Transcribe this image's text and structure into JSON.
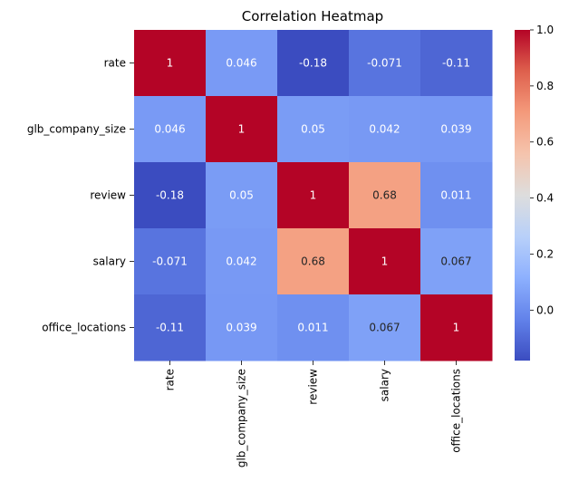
{
  "chart_data": {
    "type": "heatmap",
    "title": "Correlation Heatmap",
    "colormap": "coolwarm",
    "rows": [
      "rate",
      "glb_company_size",
      "review",
      "salary",
      "office_locations"
    ],
    "columns": [
      "rate",
      "glb_company_size",
      "review",
      "salary",
      "office_locations"
    ],
    "values": [
      [
        1,
        0.046,
        -0.18,
        -0.071,
        -0.11
      ],
      [
        0.046,
        1,
        0.05,
        0.042,
        0.039
      ],
      [
        -0.18,
        0.05,
        1,
        0.68,
        0.011
      ],
      [
        -0.071,
        0.042,
        0.68,
        1,
        0.067
      ],
      [
        -0.11,
        0.039,
        0.011,
        0.067,
        1
      ]
    ],
    "cell_labels": [
      [
        "1",
        "0.046",
        "-0.18",
        "-0.071",
        "-0.11"
      ],
      [
        "0.046",
        "1",
        "0.05",
        "0.042",
        "0.039"
      ],
      [
        "-0.18",
        "0.05",
        "1",
        "0.68",
        "0.011"
      ],
      [
        "-0.071",
        "0.042",
        "0.68",
        "1",
        "0.067"
      ],
      [
        "-0.11",
        "0.039",
        "0.011",
        "0.067",
        "1"
      ]
    ],
    "colorbar": {
      "range": [
        -0.18,
        1.0
      ],
      "ticks": [
        0.0,
        0.2,
        0.4,
        0.6,
        0.8,
        1.0
      ],
      "tick_labels": [
        "0.0",
        "0.2",
        "0.4",
        "0.6",
        "0.8",
        "1.0"
      ]
    }
  }
}
